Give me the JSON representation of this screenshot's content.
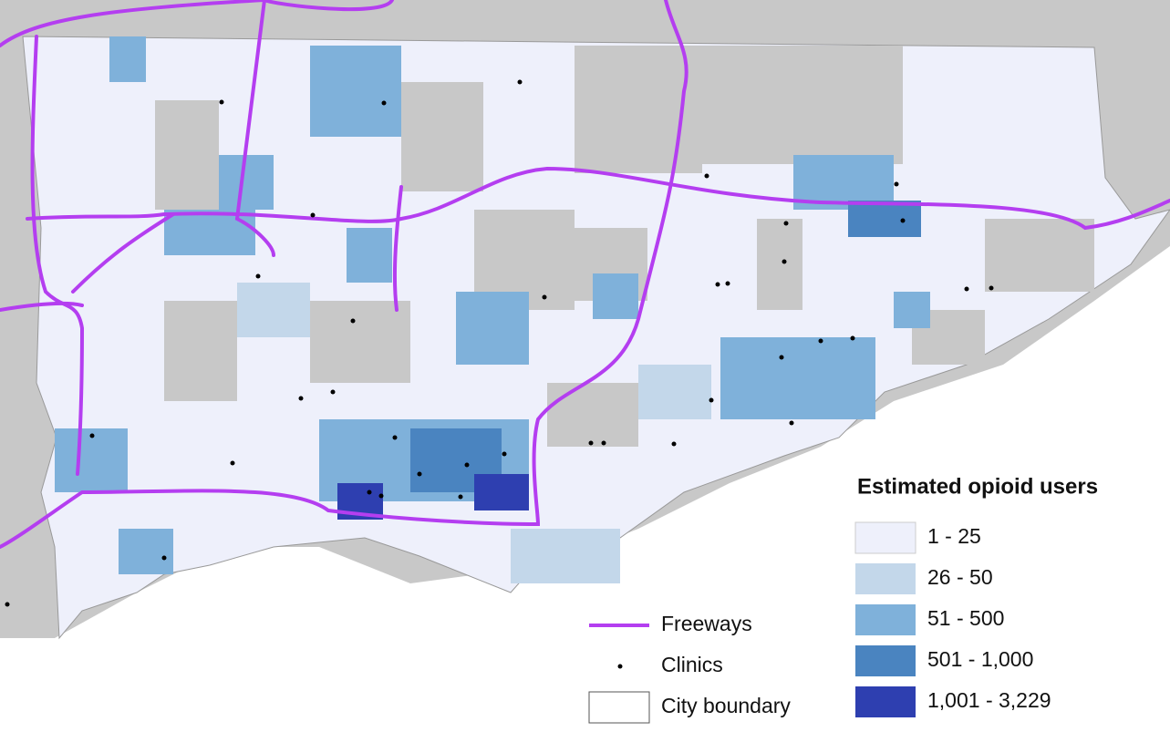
{
  "legend": {
    "title": "Estimated opioid users",
    "classes": [
      {
        "label": "1 - 25",
        "color": "#eef0fb"
      },
      {
        "label": "26 - 50",
        "color": "#c3d7ea"
      },
      {
        "label": "51 - 500",
        "color": "#7fb1da"
      },
      {
        "label": "501 - 1,000",
        "color": "#4a84c0"
      },
      {
        "label": "1,001 - 3,229",
        "color": "#2e3fb0"
      }
    ],
    "layers": [
      {
        "label": "Freeways",
        "color": "#b43ef0"
      },
      {
        "label": "Clinics",
        "color": "#000000"
      },
      {
        "label": "City boundary",
        "color": "#ffffff"
      }
    ]
  }
}
